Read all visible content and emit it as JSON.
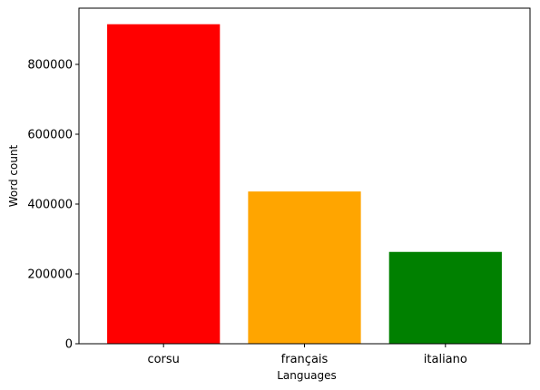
{
  "chart_data": {
    "type": "bar",
    "categories": [
      "corsu",
      "français",
      "italiano"
    ],
    "values": [
      915000,
      436000,
      263000
    ],
    "colors": [
      "#ff0000",
      "#ffa500",
      "#008000"
    ],
    "title": "",
    "xlabel": "Languages",
    "ylabel": "Word count",
    "ylim": [
      0,
      961000
    ],
    "yticks": [
      0,
      200000,
      400000,
      600000,
      800000
    ],
    "ytick_labels": [
      "0",
      "200000",
      "400000",
      "600000",
      "800000"
    ],
    "grid": false,
    "legend": "none"
  }
}
